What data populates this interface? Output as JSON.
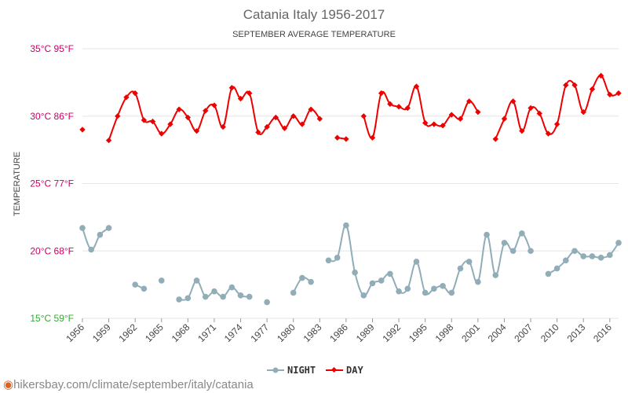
{
  "chart_data": {
    "type": "line",
    "title": "Catania Italy 1956-2017",
    "subtitle": "SEPTEMBER AVERAGE TEMPERATURE",
    "ylabel": "TEMPERATURE",
    "ylim": [
      15,
      35
    ],
    "y_ticks": [
      {
        "value": 35,
        "label": "35°C 95°F",
        "color": "#cc0066"
      },
      {
        "value": 30,
        "label": "30°C 86°F",
        "color": "#cc0066"
      },
      {
        "value": 25,
        "label": "25°C 77°F",
        "color": "#cc0066"
      },
      {
        "value": 20,
        "label": "20°C 68°F",
        "color": "#cc0066"
      },
      {
        "value": 15,
        "label": "15°C 59°F",
        "color": "#33aa33"
      }
    ],
    "xlim": [
      1956,
      2017
    ],
    "x_tick_labels": [
      "1956",
      "1959",
      "1962",
      "1965",
      "1968",
      "1971",
      "1974",
      "1977",
      "1980",
      "1983",
      "1986",
      "1989",
      "1992",
      "1995",
      "1998",
      "2001",
      "2004",
      "2007",
      "2010",
      "2013",
      "2016"
    ],
    "grid": true,
    "legend_position": "bottom-center",
    "x": [
      1956,
      1957,
      1958,
      1959,
      1960,
      1961,
      1962,
      1963,
      1964,
      1965,
      1966,
      1967,
      1968,
      1969,
      1970,
      1971,
      1972,
      1973,
      1974,
      1975,
      1976,
      1977,
      1978,
      1979,
      1980,
      1981,
      1982,
      1983,
      1984,
      1985,
      1986,
      1987,
      1988,
      1989,
      1990,
      1991,
      1992,
      1993,
      1994,
      1995,
      1996,
      1997,
      1998,
      1999,
      2000,
      2001,
      2002,
      2003,
      2004,
      2005,
      2006,
      2007,
      2008,
      2009,
      2010,
      2011,
      2012,
      2013,
      2014,
      2015,
      2016,
      2017
    ],
    "series": [
      {
        "name": "NIGHT",
        "color": "#90adb8",
        "marker": "circle",
        "values": [
          21.7,
          20.1,
          21.2,
          21.7,
          null,
          null,
          17.5,
          17.2,
          null,
          17.8,
          null,
          16.4,
          16.5,
          17.8,
          16.6,
          17.0,
          16.6,
          17.3,
          16.7,
          16.6,
          null,
          16.2,
          null,
          null,
          16.9,
          18.0,
          17.7,
          null,
          19.3,
          19.5,
          21.9,
          18.4,
          16.7,
          17.6,
          17.8,
          18.3,
          17.0,
          17.2,
          19.2,
          16.9,
          17.2,
          17.4,
          16.9,
          18.7,
          19.2,
          17.7,
          21.2,
          18.2,
          20.6,
          20.0,
          21.3,
          20.0,
          null,
          18.3,
          18.7,
          19.3,
          20.0,
          19.6,
          19.6,
          19.5,
          19.7,
          20.6
        ]
      },
      {
        "name": "DAY",
        "color": "#ee0000",
        "marker": "diamond",
        "values": [
          29.0,
          null,
          null,
          28.2,
          30.0,
          31.4,
          31.7,
          29.7,
          29.6,
          28.7,
          29.4,
          30.5,
          29.9,
          28.9,
          30.4,
          30.8,
          29.2,
          32.1,
          31.3,
          31.7,
          28.8,
          29.2,
          29.9,
          29.1,
          30.0,
          29.4,
          30.5,
          29.8,
          null,
          28.4,
          28.3,
          null,
          30.0,
          28.4,
          31.7,
          30.9,
          30.7,
          30.6,
          32.2,
          29.5,
          29.4,
          29.3,
          30.1,
          29.8,
          31.1,
          30.3,
          null,
          28.3,
          29.8,
          31.1,
          28.9,
          30.6,
          30.2,
          28.7,
          29.4,
          32.3,
          32.3,
          30.3,
          32.0,
          33.0,
          31.6,
          31.7
        ]
      }
    ]
  },
  "footer": {
    "pin_icon": "location-pin-icon",
    "url_text": "hikersbay.com/climate/september/italy/catania"
  }
}
